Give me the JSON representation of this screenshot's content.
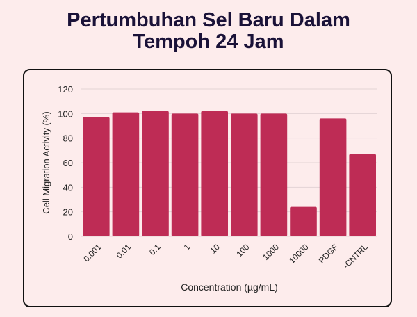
{
  "chart_data": {
    "type": "bar",
    "title": [
      "Pertumbuhan Sel Baru Dalam",
      "Tempoh 24 Jam"
    ],
    "xlabel": "Concentration (µg/mL)",
    "ylabel": "Cell Migration Activity (%)",
    "categories": [
      "0.001",
      "0.01",
      "0.1",
      "1",
      "10",
      "100",
      "1000",
      "10000",
      "PDGF",
      "-CNTRL"
    ],
    "values": [
      97,
      101,
      102,
      100,
      102,
      100,
      100,
      24,
      96,
      67
    ],
    "ylim": [
      0,
      120
    ],
    "yticks": [
      0,
      20,
      40,
      60,
      80,
      100,
      120
    ],
    "grid": true,
    "legend": "none",
    "colors": {
      "bar": "#be2c55",
      "title": "#1a1238",
      "background": "#fdecec",
      "grid": "#e3d3d5"
    }
  }
}
